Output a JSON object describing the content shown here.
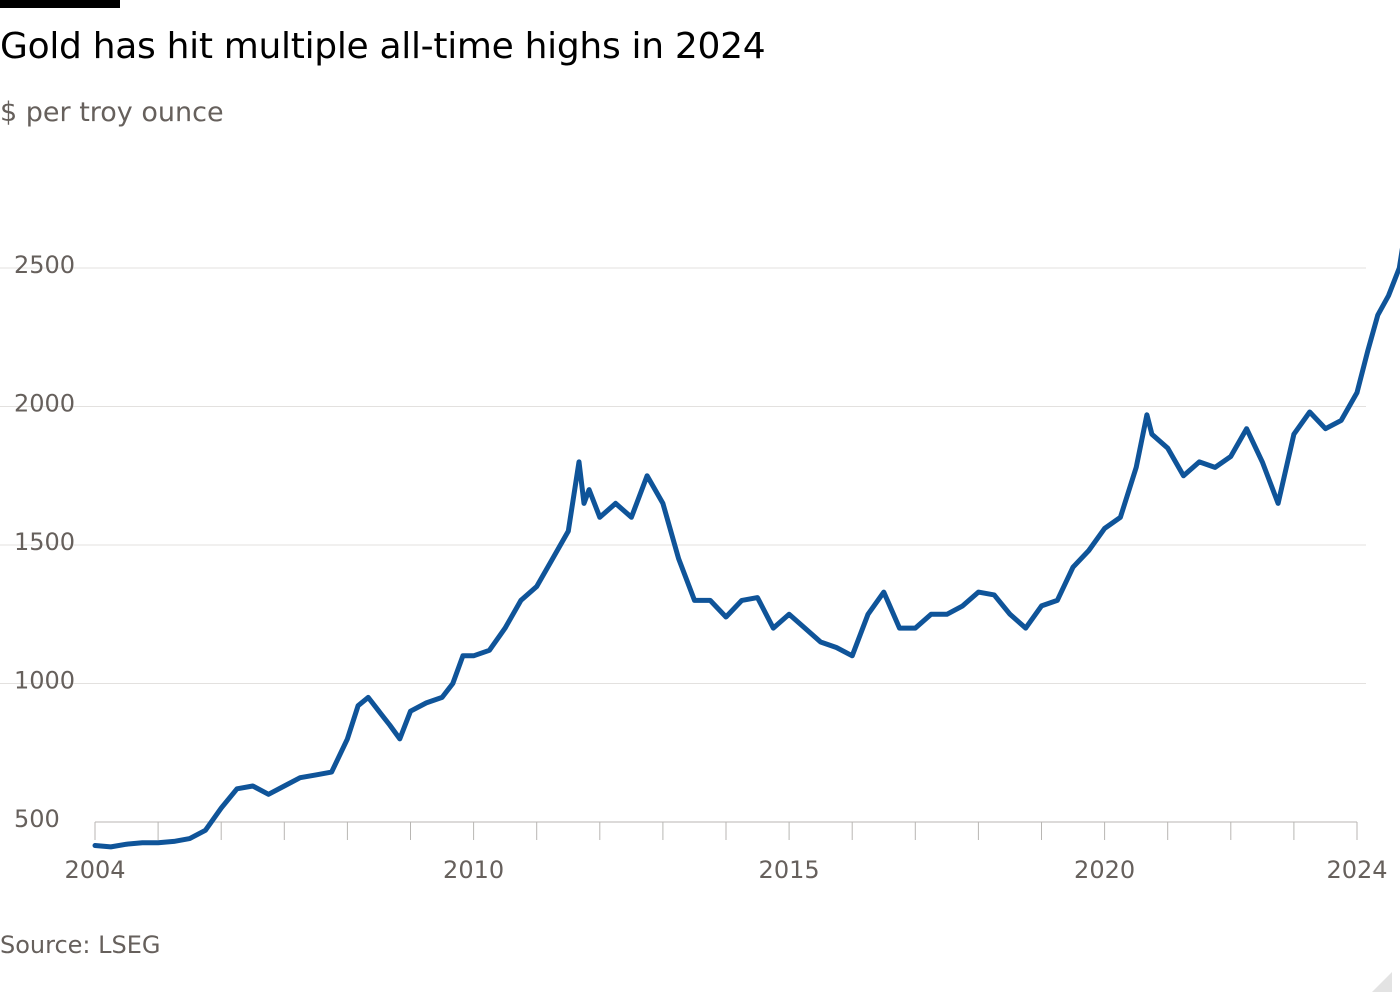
{
  "source": "Source: LSEG",
  "chart_data": {
    "type": "line",
    "title": "Gold has hit multiple all-time highs in 2024",
    "subtitle": "$ per troy ounce",
    "xlabel": "",
    "ylabel": "",
    "xlim": [
      2004,
      2024
    ],
    "ylim": [
      420,
      2750
    ],
    "y_ticks": [
      500,
      1000,
      1500,
      2000,
      2500
    ],
    "x_tick_labels": [
      "2004",
      "2010",
      "2015",
      "2020",
      "2024"
    ],
    "x_tick_values": [
      2004,
      2010,
      2015,
      2020,
      2024
    ],
    "grid": "horizontal",
    "legend": "none",
    "line_color": "#0f5499",
    "series": [
      {
        "x": [
          2004.0,
          2004.25,
          2004.5,
          2004.75,
          2005.0,
          2005.25,
          2005.5,
          2005.75,
          2006.0,
          2006.25,
          2006.5,
          2006.75,
          2007.0,
          2007.25,
          2007.5,
          2007.75,
          2008.0,
          2008.17,
          2008.33,
          2008.5,
          2008.67,
          2008.83,
          2009.0,
          2009.25,
          2009.5,
          2009.67,
          2009.83,
          2010.0,
          2010.25,
          2010.5,
          2010.75,
          2011.0,
          2011.25,
          2011.5,
          2011.67,
          2011.75,
          2011.83,
          2012.0,
          2012.25,
          2012.5,
          2012.75,
          2013.0,
          2013.25,
          2013.5,
          2013.75,
          2014.0,
          2014.25,
          2014.5,
          2014.75,
          2015.0,
          2015.25,
          2015.5,
          2015.75,
          2016.0,
          2016.25,
          2016.5,
          2016.75,
          2017.0,
          2017.25,
          2017.5,
          2017.75,
          2018.0,
          2018.25,
          2018.5,
          2018.75,
          2019.0,
          2019.25,
          2019.5,
          2019.75,
          2020.0,
          2020.25,
          2020.5,
          2020.67,
          2020.75,
          2021.0,
          2021.25,
          2021.5,
          2021.75,
          2022.0,
          2022.25,
          2022.5,
          2022.75,
          2023.0,
          2023.25,
          2023.5,
          2023.75,
          2024.0,
          2024.17,
          2024.33,
          2024.5,
          2024.67,
          2024.83
        ],
        "values": [
          415,
          410,
          420,
          425,
          425,
          430,
          440,
          470,
          550,
          620,
          630,
          600,
          630,
          660,
          670,
          680,
          800,
          920,
          950,
          900,
          850,
          800,
          900,
          930,
          950,
          1000,
          1100,
          1100,
          1120,
          1200,
          1300,
          1350,
          1450,
          1550,
          1800,
          1650,
          1700,
          1600,
          1650,
          1600,
          1750,
          1650,
          1450,
          1300,
          1300,
          1240,
          1300,
          1310,
          1200,
          1250,
          1200,
          1150,
          1130,
          1100,
          1250,
          1330,
          1200,
          1200,
          1250,
          1250,
          1280,
          1330,
          1320,
          1250,
          1200,
          1280,
          1300,
          1420,
          1480,
          1560,
          1600,
          1780,
          1970,
          1900,
          1850,
          1750,
          1800,
          1780,
          1820,
          1920,
          1800,
          1650,
          1900,
          1980,
          1920,
          1950,
          2050,
          2200,
          2330,
          2400,
          2500,
          2730
        ]
      }
    ]
  }
}
